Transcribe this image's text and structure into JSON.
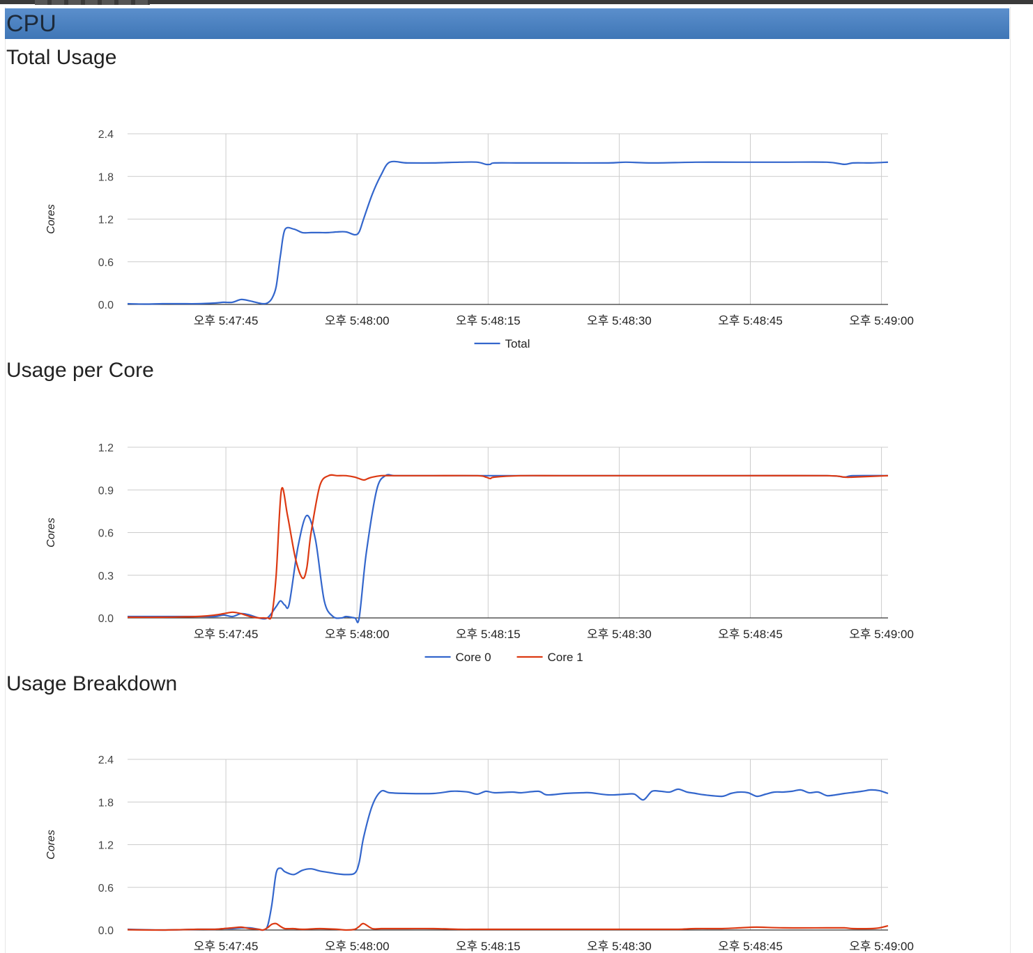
{
  "section": {
    "title": "CPU"
  },
  "chart_data": [
    {
      "type": "line",
      "title": "Total Usage",
      "ylabel": "Cores",
      "ylim": [
        0,
        2.4
      ],
      "yticks": [
        "0.0",
        "0.6",
        "1.2",
        "1.8",
        "2.4"
      ],
      "xlim": [
        0,
        87
      ],
      "xticks": [
        {
          "x": 11.25,
          "label": "오후 5:47:45"
        },
        {
          "x": 26.25,
          "label": "오후 5:48:00"
        },
        {
          "x": 41.25,
          "label": "오후 5:48:15"
        },
        {
          "x": 56.25,
          "label": "오후 5:48:30"
        },
        {
          "x": 71.25,
          "label": "오후 5:48:45"
        },
        {
          "x": 86.25,
          "label": "오후 5:49:00"
        }
      ],
      "legend": "bottom",
      "series": [
        {
          "name": "Total",
          "color": "#3366cc",
          "x": [
            0,
            2,
            4,
            6,
            8,
            10,
            11,
            12,
            13,
            14,
            15,
            15.5,
            16,
            16.5,
            17,
            17.5,
            18,
            19,
            20,
            21,
            22,
            23,
            24,
            25,
            26,
            26.5,
            27,
            28,
            29,
            30,
            32,
            35,
            38,
            40,
            41,
            41.5,
            42,
            45,
            50,
            55,
            57,
            60,
            65,
            70,
            75,
            80,
            82,
            83,
            85,
            87
          ],
          "y": [
            0.01,
            0.005,
            0.01,
            0.01,
            0.01,
            0.02,
            0.03,
            0.03,
            0.07,
            0.05,
            0.02,
            0.01,
            0.02,
            0.08,
            0.25,
            0.7,
            1.05,
            1.06,
            1.01,
            1.01,
            1.01,
            1.01,
            1.02,
            1.02,
            0.98,
            1.02,
            1.2,
            1.55,
            1.82,
            2.0,
            1.99,
            1.99,
            2.0,
            2.0,
            1.97,
            1.97,
            1.99,
            1.99,
            1.99,
            1.99,
            2.0,
            1.99,
            2.0,
            2.0,
            2.0,
            2.0,
            1.97,
            1.99,
            1.99,
            2.0
          ]
        }
      ]
    },
    {
      "type": "line",
      "title": "Usage per Core",
      "ylabel": "Cores",
      "ylim": [
        0,
        1.2
      ],
      "yticks": [
        "0.0",
        "0.3",
        "0.6",
        "0.9",
        "1.2"
      ],
      "xlim": [
        0,
        87
      ],
      "xticks": [
        {
          "x": 11.25,
          "label": "오후 5:47:45"
        },
        {
          "x": 26.25,
          "label": "오후 5:48:00"
        },
        {
          "x": 41.25,
          "label": "오후 5:48:15"
        },
        {
          "x": 56.25,
          "label": "오후 5:48:30"
        },
        {
          "x": 71.25,
          "label": "오후 5:48:45"
        },
        {
          "x": 86.25,
          "label": "오후 5:49:00"
        }
      ],
      "legend": "bottom",
      "series": [
        {
          "name": "Core 0",
          "color": "#3366cc",
          "x": [
            0,
            4,
            8,
            10,
            11,
            12,
            13,
            14,
            15,
            16,
            17,
            17.5,
            18,
            18.5,
            19.5,
            20.5,
            21.5,
            22.5,
            23.5,
            24.5,
            25,
            26,
            26.5,
            27.3,
            28.5,
            29.5,
            30.5,
            32,
            35,
            40,
            41,
            41.5,
            42,
            45,
            50,
            60,
            70,
            80,
            82,
            83,
            87
          ],
          "y": [
            0.01,
            0.01,
            0.01,
            0.01,
            0.02,
            0.01,
            0.03,
            0.02,
            0.0,
            0.0,
            0.08,
            0.12,
            0.09,
            0.1,
            0.5,
            0.72,
            0.55,
            0.12,
            0.01,
            0.0,
            0.01,
            0.0,
            0.0,
            0.45,
            0.9,
            1.0,
            1.0,
            1.0,
            1.0,
            1.0,
            1.0,
            1.0,
            1.0,
            1.0,
            1.0,
            1.0,
            1.0,
            1.0,
            0.99,
            1.0,
            1.0
          ]
        },
        {
          "name": "Core 1",
          "color": "#dc3912",
          "x": [
            0,
            4,
            8,
            10,
            11,
            12,
            13,
            14,
            15,
            15.5,
            16,
            16.5,
            17,
            17.6,
            18.3,
            19.2,
            20,
            20.5,
            21,
            22,
            23,
            24,
            25,
            26,
            27,
            27.5,
            28,
            29,
            30,
            32,
            35,
            40,
            41,
            41.5,
            42,
            45,
            50,
            60,
            70,
            80,
            82,
            83,
            87
          ],
          "y": [
            0.005,
            0.005,
            0.01,
            0.02,
            0.03,
            0.04,
            0.03,
            0.01,
            0.0,
            0.0,
            0.0,
            0.02,
            0.3,
            0.9,
            0.72,
            0.42,
            0.28,
            0.35,
            0.6,
            0.93,
            1.0,
            1.0,
            1.0,
            0.99,
            0.97,
            0.98,
            0.99,
            1.0,
            1.0,
            1.0,
            1.0,
            1.0,
            0.99,
            0.98,
            0.99,
            1.0,
            1.0,
            1.0,
            1.0,
            1.0,
            0.99,
            0.99,
            1.0
          ]
        }
      ]
    },
    {
      "type": "line",
      "title": "Usage Breakdown",
      "ylabel": "Cores",
      "ylim": [
        0,
        2.4
      ],
      "yticks": [
        "0.0",
        "0.6",
        "1.2",
        "1.8",
        "2.4"
      ],
      "xlim": [
        0,
        87
      ],
      "xticks": [
        {
          "x": 11.25,
          "label": "오후 5:47:45"
        },
        {
          "x": 26.25,
          "label": "오후 5:48:00"
        },
        {
          "x": 41.25,
          "label": "오후 5:48:15"
        },
        {
          "x": 56.25,
          "label": "오후 5:48:30"
        },
        {
          "x": 71.25,
          "label": "오후 5:48:45"
        },
        {
          "x": 86.25,
          "label": "오후 5:49:00"
        }
      ],
      "legend": "none",
      "series": [
        {
          "color": "#3366cc",
          "x": [
            0,
            4,
            8,
            10,
            11,
            12,
            13,
            14,
            15,
            15.5,
            16,
            16.5,
            17,
            17.5,
            18,
            19,
            20,
            21,
            22,
            23,
            24,
            25,
            26,
            26.5,
            27,
            28,
            29,
            30,
            32,
            35,
            37,
            38,
            39,
            40,
            41,
            42,
            44,
            45,
            47,
            48,
            50,
            52,
            53,
            55,
            57,
            58,
            59,
            60,
            61,
            62,
            63,
            64,
            65,
            66,
            68,
            69,
            70,
            71,
            72,
            73,
            74,
            75,
            76,
            77,
            78,
            79,
            80,
            81,
            82,
            84,
            85,
            86,
            87
          ],
          "y": [
            0.01,
            0.0,
            0.01,
            0.01,
            0.02,
            0.02,
            0.03,
            0.03,
            0.01,
            0.0,
            0.05,
            0.35,
            0.8,
            0.87,
            0.82,
            0.78,
            0.84,
            0.86,
            0.83,
            0.81,
            0.79,
            0.78,
            0.8,
            0.95,
            1.3,
            1.75,
            1.95,
            1.93,
            1.92,
            1.92,
            1.95,
            1.95,
            1.94,
            1.91,
            1.95,
            1.93,
            1.94,
            1.93,
            1.95,
            1.9,
            1.92,
            1.93,
            1.93,
            1.9,
            1.91,
            1.91,
            1.83,
            1.95,
            1.95,
            1.94,
            1.98,
            1.94,
            1.92,
            1.9,
            1.88,
            1.92,
            1.94,
            1.93,
            1.88,
            1.91,
            1.94,
            1.94,
            1.95,
            1.97,
            1.93,
            1.94,
            1.89,
            1.9,
            1.92,
            1.95,
            1.97,
            1.96,
            1.92
          ]
        },
        {
          "color": "#dc3912",
          "x": [
            0,
            4,
            8,
            10,
            11,
            12,
            13,
            14,
            15,
            15.5,
            16,
            16.5,
            17,
            17.5,
            18,
            19,
            20,
            22,
            24,
            25,
            26,
            26.5,
            27,
            28,
            29,
            30,
            32,
            35,
            38,
            40,
            42,
            45,
            50,
            55,
            60,
            63,
            65,
            68,
            70,
            72,
            75,
            80,
            82,
            83,
            85,
            86,
            87
          ],
          "y": [
            0.005,
            0.0,
            0.01,
            0.01,
            0.02,
            0.03,
            0.04,
            0.02,
            0.01,
            0.0,
            0.03,
            0.08,
            0.09,
            0.05,
            0.02,
            0.02,
            0.01,
            0.02,
            0.01,
            0.0,
            0.01,
            0.05,
            0.09,
            0.02,
            0.02,
            0.02,
            0.02,
            0.02,
            0.01,
            0.01,
            0.01,
            0.01,
            0.01,
            0.01,
            0.01,
            0.01,
            0.02,
            0.02,
            0.03,
            0.04,
            0.03,
            0.03,
            0.03,
            0.02,
            0.02,
            0.03,
            0.06
          ]
        }
      ]
    }
  ]
}
